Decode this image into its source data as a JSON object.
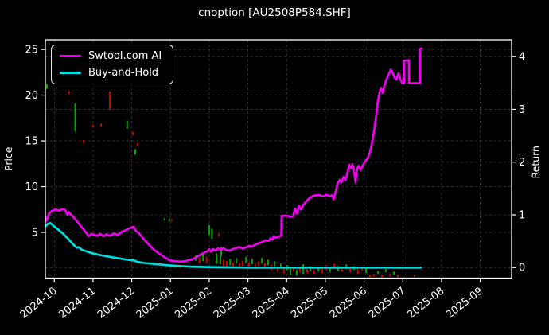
{
  "title": "cnoption [AU2508P584.SHF]",
  "legend": [
    {
      "label": "Swtool.com AI",
      "color": "#f000f0"
    },
    {
      "label": "Buy-and-Hold",
      "color": "#00dede"
    }
  ],
  "colors": {
    "background": "#000000",
    "frame": "#ffffff",
    "grid": "#3c3c3c",
    "ai_line": "#f000f0",
    "hold_line": "#00dede",
    "candle_up": "#00a800",
    "candle_down": "#d40000",
    "text": "#ffffff"
  },
  "chart_data": {
    "type": "line",
    "title": "cnoption [AU2508P584.SHF]",
    "grid": true,
    "legend_position": "upper-left",
    "x_axis": {
      "unit": "month-index (0 = 2024-10)",
      "lim": [
        -0.232,
        11.81
      ],
      "ticks": [
        "2024-10",
        "2024-11",
        "2024-12",
        "2025-01",
        "2025-02",
        "2025-03",
        "2025-04",
        "2025-05",
        "2025-06",
        "2025-07",
        "2025-08",
        "2025-09"
      ]
    },
    "y_left": {
      "label": "Price",
      "lim": [
        0,
        26.05
      ],
      "ticks": [
        5,
        10,
        15,
        20,
        25
      ]
    },
    "y_right": {
      "label": "Return",
      "lim": [
        -0.2,
        4.32
      ],
      "ticks": [
        0,
        1,
        2,
        3,
        4
      ]
    },
    "series": [
      {
        "name": "Swtool.com AI",
        "color": "#f000f0",
        "axis": "left",
        "width": 2.7,
        "points": [
          [
            -0.23,
            6.63
          ],
          [
            -0.2,
            6.28
          ],
          [
            -0.14,
            7.03
          ],
          [
            -0.07,
            7.32
          ],
          [
            0.04,
            7.5
          ],
          [
            0.12,
            7.37
          ],
          [
            0.2,
            7.54
          ],
          [
            0.28,
            7.45
          ],
          [
            0.34,
            6.89
          ],
          [
            0.37,
            7.23
          ],
          [
            0.41,
            7.06
          ],
          [
            0.51,
            6.6
          ],
          [
            0.65,
            5.87
          ],
          [
            0.79,
            5.15
          ],
          [
            0.89,
            4.57
          ],
          [
            0.96,
            4.84
          ],
          [
            1.02,
            4.75
          ],
          [
            1.1,
            4.63
          ],
          [
            1.19,
            4.84
          ],
          [
            1.27,
            4.57
          ],
          [
            1.35,
            4.8
          ],
          [
            1.43,
            4.63
          ],
          [
            1.54,
            4.89
          ],
          [
            1.64,
            4.71
          ],
          [
            1.74,
            5.06
          ],
          [
            1.82,
            5.2
          ],
          [
            1.99,
            5.55
          ],
          [
            2.05,
            5.6
          ],
          [
            2.11,
            5.15
          ],
          [
            2.19,
            4.9
          ],
          [
            2.3,
            4.3
          ],
          [
            2.42,
            3.76
          ],
          [
            2.56,
            3.15
          ],
          [
            2.71,
            2.67
          ],
          [
            2.85,
            2.28
          ],
          [
            2.97,
            1.96
          ],
          [
            3.12,
            1.85
          ],
          [
            3.26,
            1.8
          ],
          [
            3.39,
            1.85
          ],
          [
            3.49,
            1.98
          ],
          [
            3.59,
            2.1
          ],
          [
            3.73,
            2.45
          ],
          [
            3.88,
            2.8
          ],
          [
            3.96,
            2.97
          ],
          [
            4.0,
            3.15
          ],
          [
            4.05,
            2.9
          ],
          [
            4.1,
            3.17
          ],
          [
            4.17,
            3.0
          ],
          [
            4.23,
            3.26
          ],
          [
            4.3,
            3.08
          ],
          [
            4.37,
            3.3
          ],
          [
            4.43,
            3.08
          ],
          [
            4.52,
            3.0
          ],
          [
            4.6,
            3.15
          ],
          [
            4.68,
            3.26
          ],
          [
            4.78,
            3.4
          ],
          [
            4.86,
            3.23
          ],
          [
            4.95,
            3.36
          ],
          [
            5.03,
            3.53
          ],
          [
            5.11,
            3.44
          ],
          [
            5.19,
            3.67
          ],
          [
            5.3,
            3.84
          ],
          [
            5.38,
            3.97
          ],
          [
            5.46,
            4.14
          ],
          [
            5.54,
            4.06
          ],
          [
            5.58,
            4.35
          ],
          [
            5.63,
            4.2
          ],
          [
            5.67,
            4.6
          ],
          [
            5.71,
            4.4
          ],
          [
            5.8,
            4.55
          ],
          [
            5.86,
            4.65
          ],
          [
            5.87,
            6.8
          ],
          [
            5.95,
            6.83
          ],
          [
            6.03,
            6.8
          ],
          [
            6.1,
            6.7
          ],
          [
            6.16,
            6.75
          ],
          [
            6.22,
            7.6
          ],
          [
            6.27,
            7.05
          ],
          [
            6.32,
            7.9
          ],
          [
            6.37,
            7.5
          ],
          [
            6.43,
            8.0
          ],
          [
            6.49,
            8.3
          ],
          [
            6.55,
            8.6
          ],
          [
            6.62,
            8.85
          ],
          [
            6.7,
            9.0
          ],
          [
            6.78,
            9.06
          ],
          [
            6.86,
            9.06
          ],
          [
            6.94,
            8.93
          ],
          [
            7.02,
            9.1
          ],
          [
            7.1,
            8.97
          ],
          [
            7.17,
            9.06
          ],
          [
            7.21,
            8.63
          ],
          [
            7.27,
            9.5
          ],
          [
            7.31,
            10.28
          ],
          [
            7.37,
            10.76
          ],
          [
            7.41,
            10.45
          ],
          [
            7.47,
            11.06
          ],
          [
            7.52,
            10.71
          ],
          [
            7.58,
            11.67
          ],
          [
            7.62,
            12.37
          ],
          [
            7.66,
            12.02
          ],
          [
            7.7,
            12.45
          ],
          [
            7.74,
            11.84
          ],
          [
            7.78,
            10.45
          ],
          [
            7.82,
            11.93
          ],
          [
            7.86,
            12.28
          ],
          [
            7.91,
            11.84
          ],
          [
            7.97,
            12.37
          ],
          [
            8.03,
            12.8
          ],
          [
            8.09,
            13.06
          ],
          [
            8.15,
            13.76
          ],
          [
            8.19,
            14.45
          ],
          [
            8.23,
            15.4
          ],
          [
            8.28,
            16.7
          ],
          [
            8.32,
            18.1
          ],
          [
            8.36,
            19.4
          ],
          [
            8.4,
            20.36
          ],
          [
            8.44,
            20.8
          ],
          [
            8.48,
            20.23
          ],
          [
            8.52,
            20.97
          ],
          [
            8.58,
            21.75
          ],
          [
            8.65,
            22.4
          ],
          [
            8.69,
            22.8
          ],
          [
            8.73,
            22.5
          ],
          [
            8.79,
            21.9
          ],
          [
            8.83,
            21.7
          ],
          [
            8.89,
            22.4
          ],
          [
            8.95,
            21.6
          ],
          [
            8.99,
            21.3
          ],
          [
            9.03,
            21.3
          ],
          [
            9.03,
            23.75
          ],
          [
            9.12,
            23.8
          ],
          [
            9.16,
            23.8
          ],
          [
            9.16,
            21.3
          ],
          [
            9.28,
            21.3
          ],
          [
            9.4,
            21.3
          ],
          [
            9.44,
            21.3
          ],
          [
            9.44,
            25.06
          ],
          [
            9.49,
            25.1
          ]
        ]
      },
      {
        "name": "Buy-and-Hold",
        "color": "#00dede",
        "axis": "left",
        "width": 2.7,
        "points": [
          [
            -0.23,
            5.67
          ],
          [
            -0.17,
            5.93
          ],
          [
            -0.1,
            6.02
          ],
          [
            -0.03,
            5.76
          ],
          [
            0.1,
            5.3
          ],
          [
            0.24,
            4.8
          ],
          [
            0.36,
            4.28
          ],
          [
            0.51,
            3.58
          ],
          [
            0.56,
            3.4
          ],
          [
            0.59,
            3.32
          ],
          [
            0.63,
            3.38
          ],
          [
            0.71,
            3.1
          ],
          [
            0.86,
            2.88
          ],
          [
            1.02,
            2.67
          ],
          [
            1.21,
            2.5
          ],
          [
            1.43,
            2.32
          ],
          [
            1.68,
            2.15
          ],
          [
            1.88,
            2.02
          ],
          [
            2.09,
            1.9
          ],
          [
            2.13,
            1.78
          ],
          [
            2.3,
            1.67
          ],
          [
            2.5,
            1.58
          ],
          [
            2.71,
            1.5
          ],
          [
            2.95,
            1.4
          ],
          [
            3.22,
            1.32
          ],
          [
            3.53,
            1.25
          ],
          [
            3.9,
            1.21
          ],
          [
            4.97,
            1.15
          ],
          [
            9.47,
            1.15
          ]
        ]
      }
    ],
    "candles": {
      "columns": [
        "x",
        "hi",
        "lo",
        "color"
      ],
      "up_color": "#00a800",
      "down_color": "#d40000",
      "rows": [
        [
          -0.19,
          21.2,
          20.7,
          "g"
        ],
        [
          0.38,
          20.45,
          20.1,
          "r"
        ],
        [
          0.54,
          19.1,
          16.0,
          "g"
        ],
        [
          0.75,
          15.1,
          14.8,
          "r"
        ],
        [
          1.0,
          16.75,
          16.45,
          "r"
        ],
        [
          1.21,
          16.9,
          16.6,
          "r"
        ],
        [
          1.43,
          20.4,
          18.4,
          "r"
        ],
        [
          1.88,
          17.2,
          16.3,
          "g"
        ],
        [
          2.03,
          15.95,
          15.6,
          "r"
        ],
        [
          2.09,
          14.1,
          13.5,
          "g"
        ],
        [
          2.15,
          14.75,
          14.4,
          "r"
        ],
        [
          2.85,
          6.55,
          6.3,
          "g"
        ],
        [
          2.97,
          6.5,
          6.2,
          "g"
        ],
        [
          3.03,
          6.45,
          6.2,
          "r"
        ],
        [
          4.0,
          5.8,
          4.7,
          "g"
        ],
        [
          4.07,
          5.4,
          4.3,
          "g"
        ],
        [
          4.25,
          4.9,
          4.6,
          "r"
        ],
        [
          4.31,
          3.4,
          2.4,
          "g"
        ],
        [
          3.65,
          2.5,
          1.9,
          "g"
        ],
        [
          3.75,
          2.2,
          1.6,
          "r"
        ],
        [
          3.84,
          2.72,
          1.85,
          "g"
        ],
        [
          3.93,
          2.37,
          1.67,
          "r"
        ],
        [
          4.19,
          2.7,
          1.6,
          "g"
        ],
        [
          4.29,
          2.4,
          1.5,
          "g"
        ],
        [
          4.37,
          2.0,
          1.3,
          "r"
        ],
        [
          4.45,
          1.9,
          1.24,
          "r"
        ],
        [
          4.54,
          2.1,
          1.4,
          "g"
        ],
        [
          4.62,
          1.75,
          1.15,
          "r"
        ],
        [
          4.7,
          2.2,
          1.6,
          "g"
        ],
        [
          4.78,
          1.67,
          1.07,
          "r"
        ],
        [
          4.86,
          1.9,
          1.3,
          "r"
        ],
        [
          4.95,
          2.3,
          1.67,
          "g"
        ],
        [
          5.03,
          1.75,
          1.24,
          "r"
        ],
        [
          5.11,
          2.1,
          1.5,
          "g"
        ],
        [
          5.19,
          1.58,
          0.98,
          "r"
        ],
        [
          5.28,
          1.84,
          1.3,
          "r"
        ],
        [
          5.36,
          2.2,
          1.58,
          "g"
        ],
        [
          5.44,
          1.67,
          1.15,
          "r"
        ],
        [
          5.52,
          2.0,
          1.4,
          "g"
        ],
        [
          5.6,
          1.5,
          0.9,
          "r"
        ],
        [
          5.69,
          1.84,
          1.3,
          "g"
        ],
        [
          5.77,
          1.3,
          0.72,
          "r"
        ],
        [
          5.85,
          1.58,
          1.07,
          "g"
        ],
        [
          5.93,
          1.15,
          0.54,
          "r"
        ],
        [
          6.02,
          1.4,
          0.9,
          "g"
        ],
        [
          6.1,
          0.98,
          0.37,
          "g"
        ],
        [
          6.18,
          1.24,
          0.72,
          "r"
        ],
        [
          6.26,
          0.9,
          0.28,
          "g"
        ],
        [
          6.34,
          1.15,
          0.63,
          "r"
        ],
        [
          6.43,
          1.5,
          0.46,
          "g"
        ],
        [
          6.53,
          0.98,
          0.54,
          "r"
        ],
        [
          6.61,
          1.32,
          0.8,
          "g"
        ],
        [
          6.71,
          0.9,
          0.46,
          "r"
        ],
        [
          6.82,
          1.24,
          0.72,
          "g"
        ],
        [
          6.92,
          0.98,
          0.54,
          "r"
        ],
        [
          7.02,
          1.4,
          0.9,
          "r"
        ],
        [
          7.12,
          1.15,
          0.63,
          "g"
        ],
        [
          7.23,
          1.58,
          1.07,
          "r"
        ],
        [
          7.33,
          1.32,
          0.8,
          "g"
        ],
        [
          7.43,
          1.15,
          0.72,
          "r"
        ],
        [
          7.54,
          1.5,
          0.98,
          "g"
        ],
        [
          7.64,
          1.07,
          0.63,
          "r"
        ],
        [
          7.74,
          1.32,
          0.9,
          "g"
        ],
        [
          7.84,
          0.98,
          0.46,
          "r"
        ],
        [
          7.95,
          1.24,
          0.8,
          "r"
        ],
        [
          8.05,
          1.07,
          0.54,
          "g"
        ],
        [
          8.15,
          0.37,
          0.1,
          "r"
        ],
        [
          8.25,
          0.46,
          0.2,
          "r"
        ],
        [
          8.36,
          0.8,
          0.46,
          "g"
        ],
        [
          8.46,
          0.37,
          0.1,
          "r"
        ],
        [
          8.56,
          0.98,
          0.63,
          "g"
        ],
        [
          8.67,
          0.46,
          0.2,
          "r"
        ],
        [
          8.77,
          0.72,
          0.37,
          "g"
        ],
        [
          8.87,
          0.37,
          0.1,
          "r"
        ],
        [
          9.3,
          0.35,
          0.15,
          "r"
        ]
      ]
    }
  }
}
